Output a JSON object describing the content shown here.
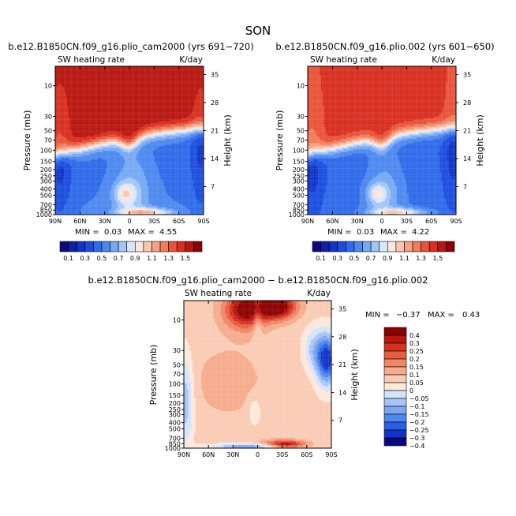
{
  "figure_title": "SON",
  "colors": {
    "seq": [
      "#0a0a7d",
      "#0f1fa6",
      "#1233c8",
      "#1a4ddf",
      "#2e6ae9",
      "#4d88ef",
      "#76a8f3",
      "#a3c6f7",
      "#d6e6fb",
      "#fbe6de",
      "#f8c5b0",
      "#f4a283",
      "#f07d5b",
      "#e9533a",
      "#d82e1f",
      "#b81610",
      "#8c0000"
    ],
    "div": [
      "#0a0a7d",
      "#1233c8",
      "#2a5fe6",
      "#4d88ef",
      "#7aa6f2",
      "#a6c4f6",
      "#d4e4fb",
      "#fde8dc",
      "#f9cbb4",
      "#f5ab8c",
      "#ef8765",
      "#e75d42",
      "#d6301f",
      "#b81610",
      "#8c0000"
    ]
  },
  "chart_data": [
    {
      "type": "heatmap",
      "id": "panel-a",
      "title": "b.e12.B1850CN.f09_g16.plio_cam2000 (yrs 691−720)",
      "left_label": "SW heating rate",
      "right_label": "K/day",
      "xlabel": "",
      "ylabel": "Pressure (mb)",
      "y2label": "Height (km)",
      "x_ticks": [
        "90N",
        "60N",
        "30N",
        "0",
        "30S",
        "60S",
        "90S"
      ],
      "x_values": [
        90,
        60,
        30,
        0,
        -30,
        -60,
        -90
      ],
      "y_ticks": [
        "10",
        "30",
        "50",
        "70",
        "100",
        "150",
        "200",
        "250",
        "300",
        "400",
        "500",
        "700",
        "850",
        "1000"
      ],
      "y_values": [
        10,
        30,
        50,
        70,
        100,
        150,
        200,
        250,
        300,
        400,
        500,
        700,
        850,
        1000
      ],
      "y2_ticks": [
        "35",
        "28",
        "21",
        "14",
        "7"
      ],
      "y2_values": [
        35,
        28,
        21,
        14,
        7
      ],
      "ylim": [
        5,
        1000
      ],
      "min_label": "MIN =",
      "min_value": "0.03",
      "max_label": "MAX =",
      "max_value": "4.55",
      "levels": [
        "0.1",
        "0.3",
        "0.5",
        "0.7",
        "0.9",
        "1.1",
        "1.3",
        "1.5"
      ],
      "level_step": 0.1,
      "peak": 1.0
    },
    {
      "type": "heatmap",
      "id": "panel-b",
      "title": "b.e12.B1850CN.f09_g16.plio.002 (yrs 601−650)",
      "left_label": "SW heating rate",
      "right_label": "K/day",
      "xlabel": "",
      "ylabel": "Pressure (mb)",
      "y2label": "Height (km)",
      "x_ticks": [
        "90N",
        "60N",
        "30N",
        "0",
        "30S",
        "60S",
        "90S"
      ],
      "x_values": [
        90,
        60,
        30,
        0,
        -30,
        -60,
        -90
      ],
      "y_ticks": [
        "10",
        "30",
        "50",
        "70",
        "100",
        "150",
        "200",
        "250",
        "300",
        "400",
        "500",
        "700",
        "850",
        "1000"
      ],
      "y_values": [
        10,
        30,
        50,
        70,
        100,
        150,
        200,
        250,
        300,
        400,
        500,
        700,
        850,
        1000
      ],
      "y2_ticks": [
        "35",
        "28",
        "21",
        "14",
        "7"
      ],
      "y2_values": [
        35,
        28,
        21,
        14,
        7
      ],
      "ylim": [
        5,
        1000
      ],
      "min_label": "MIN =",
      "min_value": "0.03",
      "max_label": "MAX =",
      "max_value": "4.22",
      "levels": [
        "0.1",
        "0.3",
        "0.5",
        "0.7",
        "0.9",
        "1.1",
        "1.3",
        "1.5"
      ],
      "level_step": 0.1,
      "peak": 0.92
    },
    {
      "type": "heatmap",
      "id": "panel-c",
      "title": "b.e12.B1850CN.f09_g16.plio_cam2000 − b.e12.B1850CN.f09_g16.plio.002",
      "left_label": "SW heating rate",
      "right_label": "K/day",
      "xlabel": "",
      "ylabel": "Pressure (mb)",
      "y2label": "Height (km)",
      "x_ticks": [
        "90N",
        "60N",
        "30N",
        "0",
        "30S",
        "60S",
        "90S"
      ],
      "x_values": [
        90,
        60,
        30,
        0,
        -30,
        -60,
        -90
      ],
      "y_ticks": [
        "10",
        "30",
        "50",
        "70",
        "100",
        "150",
        "200",
        "250",
        "300",
        "400",
        "500",
        "700",
        "850",
        "1000"
      ],
      "y_values": [
        10,
        30,
        50,
        70,
        100,
        150,
        200,
        250,
        300,
        400,
        500,
        700,
        850,
        1000
      ],
      "y2_ticks": [
        "35",
        "28",
        "21",
        "14",
        "7"
      ],
      "y2_values": [
        35,
        28,
        21,
        14,
        7
      ],
      "ylim": [
        5,
        1000
      ],
      "min_label": "MIN =",
      "min_value": "−0.37",
      "max_label": "MAX =",
      "max_value": "0.43",
      "levels": [
        "0.4",
        "0.3",
        "0.25",
        "0.2",
        "0.15",
        "0.1",
        "0.05",
        "0",
        "−0.05",
        "−0.1",
        "−0.15",
        "−0.2",
        "−0.25",
        "−0.3",
        "−0.4"
      ]
    }
  ]
}
